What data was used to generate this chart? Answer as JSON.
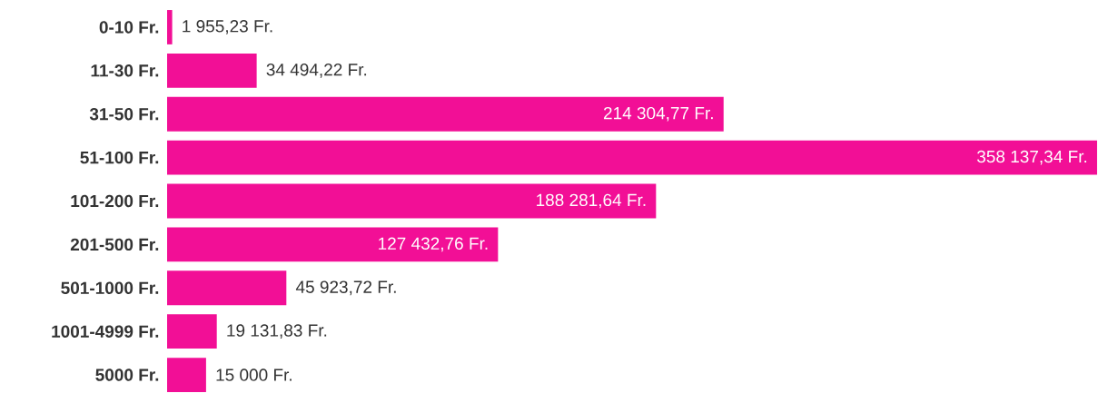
{
  "chart_data": {
    "type": "bar",
    "orientation": "horizontal",
    "color": "#f20f96",
    "categories": [
      "0-10 Fr.",
      "11-30 Fr.",
      "31-50 Fr.",
      "51-100 Fr.",
      "101-200 Fr.",
      "201-500 Fr.",
      "501-1000 Fr.",
      "1001-4999 Fr.",
      "5000 Fr."
    ],
    "values": [
      1955.23,
      34494.22,
      214304.77,
      358137.34,
      188281.64,
      127432.76,
      45923.72,
      19131.83,
      15000
    ],
    "value_labels": [
      "1 955,23 Fr.",
      "34 494,22 Fr.",
      "214 304,77 Fr.",
      "358 137,34 Fr.",
      "188 281,64 Fr.",
      "127 432,76 Fr.",
      "45 923,72 Fr.",
      "19 131,83 Fr.",
      "15 000 Fr."
    ]
  }
}
